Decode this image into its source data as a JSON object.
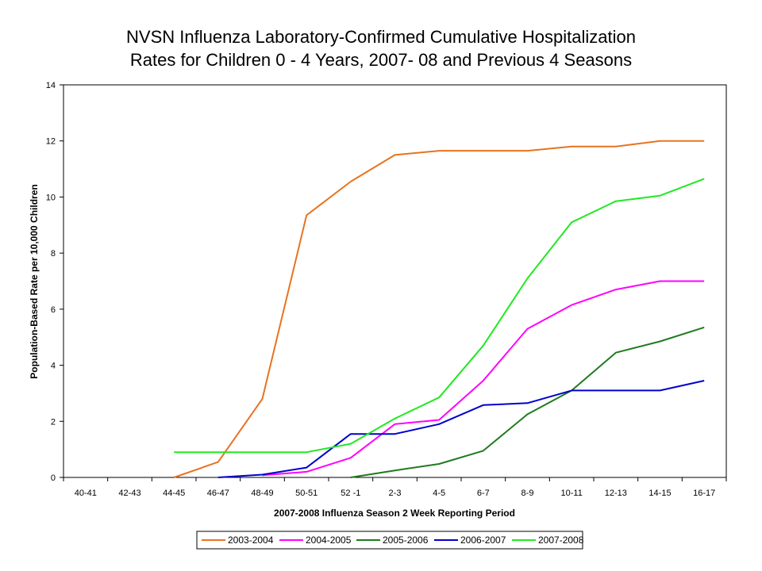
{
  "chart_data": {
    "type": "line",
    "title_lines": [
      "NVSN Influenza Laboratory-Confirmed Cumulative Hospitalization",
      "Rates for Children 0 - 4 Years, 2007- 08 and Previous 4 Seasons"
    ],
    "xlabel": "2007-2008 Influenza Season 2 Week Reporting Period",
    "ylabel": "Population-Based Rate per 10,000 Children",
    "ylim": [
      0,
      14
    ],
    "yticks": [
      0,
      2,
      4,
      6,
      8,
      10,
      12,
      14
    ],
    "categories": [
      "40-41",
      "42-43",
      "44-45",
      "46-47",
      "48-49",
      "50-51",
      "52 -1",
      "2-3",
      "4-5",
      "6-7",
      "8-9",
      "10-11",
      "12-13",
      "14-15",
      "16-17"
    ],
    "grid": false,
    "legend_position": "bottom",
    "series": [
      {
        "name": "2003-2004",
        "color": "#e8731f",
        "values": [
          null,
          null,
          0,
          0.55,
          2.8,
          9.35,
          10.55,
          11.5,
          11.65,
          11.65,
          11.65,
          11.8,
          11.8,
          12.0,
          12.0
        ]
      },
      {
        "name": "2004-2005",
        "color": "#ff00ff",
        "values": [
          null,
          null,
          null,
          null,
          0.08,
          0.2,
          0.7,
          1.9,
          2.05,
          3.45,
          5.3,
          6.15,
          6.7,
          7.0,
          7.0
        ]
      },
      {
        "name": "2005-2006",
        "color": "#1e7b1e",
        "values": [
          null,
          null,
          null,
          null,
          null,
          null,
          0,
          0.25,
          0.48,
          0.95,
          2.25,
          3.1,
          4.45,
          4.85,
          5.35
        ]
      },
      {
        "name": "2006-2007",
        "color": "#0000d0",
        "values": [
          null,
          null,
          null,
          0,
          0.1,
          0.35,
          1.55,
          1.55,
          1.9,
          2.58,
          2.65,
          3.1,
          3.1,
          3.1,
          3.45
        ]
      },
      {
        "name": "2007-2008",
        "color": "#22e822",
        "values": [
          null,
          null,
          0.9,
          0.9,
          0.9,
          0.9,
          1.2,
          2.1,
          2.85,
          4.7,
          7.1,
          9.1,
          9.85,
          10.05,
          10.65
        ]
      }
    ]
  }
}
